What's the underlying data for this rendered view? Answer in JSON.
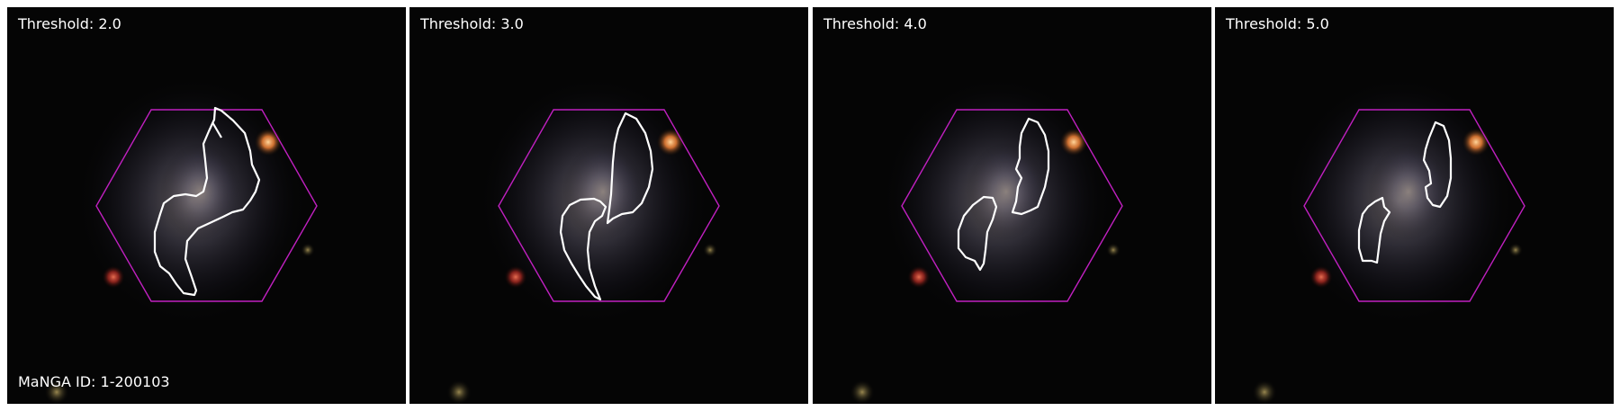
{
  "panels": [
    {
      "label": "Threshold: 2.0"
    },
    {
      "label": "Threshold: 3.0"
    },
    {
      "label": "Threshold: 4.0"
    },
    {
      "label": "Threshold: 5.0"
    }
  ],
  "manga_id_label": "MaNGA ID: 1-200103",
  "colors": {
    "background": "#050505",
    "hexagon": "#c020c0",
    "contour": "#ffffff",
    "galaxy_core": "#b8aaa2",
    "star_orange": "#ff8a3a",
    "star_red": "#d8342a"
  }
}
